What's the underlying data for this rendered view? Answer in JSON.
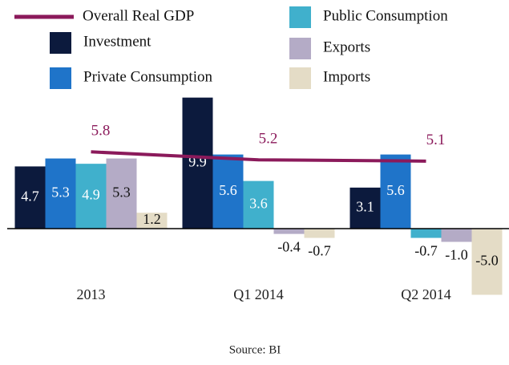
{
  "chart_data": {
    "type": "bar",
    "categories": [
      "2013",
      "Q1 2014",
      "Q2 2014"
    ],
    "ylim": [
      -5,
      10
    ],
    "series": [
      {
        "name": "Investment",
        "color": "#0c1a3d",
        "values": [
          4.7,
          9.9,
          3.1
        ],
        "value_labels": [
          "4.7",
          "9.9",
          "3.1"
        ]
      },
      {
        "name": "Private Consumption",
        "color": "#1f74c9",
        "values": [
          5.3,
          5.6,
          5.6
        ],
        "value_labels": [
          "5.3",
          "5.6",
          "5.6"
        ]
      },
      {
        "name": "Public Consumption",
        "color": "#40b0cc",
        "values": [
          4.9,
          3.6,
          -0.7
        ],
        "value_labels": [
          "4.9",
          "3.6",
          "-0.7"
        ]
      },
      {
        "name": "Exports",
        "color": "#b4abc6",
        "values": [
          5.3,
          -0.4,
          -1.0
        ],
        "value_labels": [
          "5.3",
          "-0.4",
          "-1.0"
        ]
      },
      {
        "name": "Imports",
        "color": "#e4dcc6",
        "values": [
          1.2,
          -0.7,
          -5.0
        ],
        "value_labels": [
          "1.2",
          "-0.7",
          "-5.0"
        ]
      }
    ],
    "line": {
      "name": "Overall Real GDP",
      "color": "#8b1a5b",
      "values": [
        5.8,
        5.2,
        5.1
      ]
    },
    "source": "Source: BI"
  }
}
